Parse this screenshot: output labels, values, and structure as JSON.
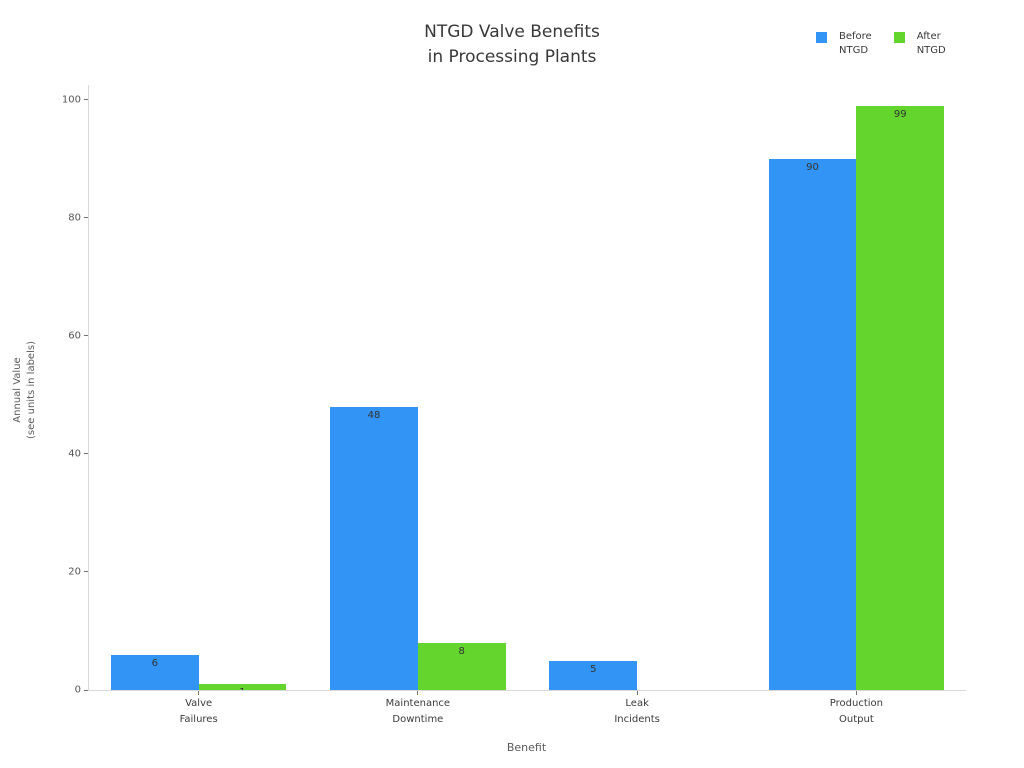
{
  "title": {
    "line1": "NTGD Valve Benefits",
    "line2": "in Processing Plants"
  },
  "legend": {
    "items": [
      {
        "line1": "Before",
        "line2": "NTGD",
        "color": "#3294F4"
      },
      {
        "line1": "After",
        "line2": "NTGD",
        "color": "#64D52D"
      }
    ]
  },
  "axes": {
    "xlabel": "Benefit",
    "ylabel_line1": "Annual Value",
    "ylabel_line2": "(see units in labels)"
  },
  "chart_data": {
    "type": "bar",
    "title": "NTGD Valve Benefits in Processing Plants",
    "categories": [
      "Valve Failures",
      "Maintenance Downtime",
      "Leak Incidents",
      "Production Output"
    ],
    "category_labels_two_line": [
      [
        "Valve",
        "Failures"
      ],
      [
        "Maintenance",
        "Downtime"
      ],
      [
        "Leak",
        "Incidents"
      ],
      [
        "Production",
        "Output"
      ]
    ],
    "series": [
      {
        "name": "Before NTGD",
        "color": "#3294F4",
        "values": [
          6,
          48,
          5,
          90
        ]
      },
      {
        "name": "After NTGD",
        "color": "#64D52D",
        "values": [
          1,
          8,
          0,
          99
        ]
      }
    ],
    "bar_value_labels": [
      [
        6,
        48,
        5,
        90
      ],
      [
        1,
        8,
        0,
        99
      ]
    ],
    "xlabel": "Benefit",
    "ylabel": "Annual Value (see units in labels)",
    "yticks": [
      0,
      20,
      40,
      60,
      80,
      100
    ],
    "ylim": [
      0,
      102.5
    ],
    "grid": false,
    "legend_position": "top-right",
    "bar_group_width": 0.8
  }
}
